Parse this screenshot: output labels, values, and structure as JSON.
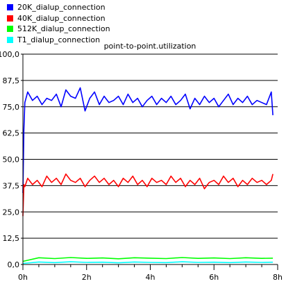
{
  "chart_data": {
    "type": "line",
    "title": "point-to-point.utilization",
    "xlabel": "",
    "ylabel": "",
    "xlim": [
      0,
      8
    ],
    "ylim": [
      0,
      100
    ],
    "grid": true,
    "legend_position": "top-left",
    "y_tick_labels": [
      "0,0",
      "12,5",
      "25,0",
      "37,5",
      "50,0",
      "62,5",
      "75,0",
      "87,5",
      "100,0"
    ],
    "x_tick_labels": [
      "0h",
      "2h",
      "4h",
      "6h",
      "8h"
    ],
    "series": [
      {
        "name": "20K_dialup_connection",
        "color": "#0000ff",
        "x": [
          0,
          0.03,
          0.06,
          0.15,
          0.3,
          0.45,
          0.6,
          0.75,
          0.9,
          1.05,
          1.2,
          1.35,
          1.5,
          1.65,
          1.8,
          1.95,
          2.1,
          2.25,
          2.4,
          2.55,
          2.7,
          2.85,
          3.0,
          3.15,
          3.3,
          3.45,
          3.6,
          3.75,
          3.9,
          4.05,
          4.2,
          4.35,
          4.5,
          4.65,
          4.8,
          4.95,
          5.1,
          5.25,
          5.4,
          5.55,
          5.7,
          5.85,
          6.0,
          6.15,
          6.3,
          6.45,
          6.6,
          6.75,
          6.9,
          7.05,
          7.2,
          7.35,
          7.5,
          7.65,
          7.8,
          7.85
        ],
        "y": [
          34,
          64,
          77,
          82,
          78,
          80,
          76,
          79,
          78,
          81,
          75,
          83,
          80,
          79,
          84,
          73,
          79,
          82,
          76,
          80,
          77,
          78,
          80,
          76,
          81,
          77,
          79,
          75,
          78,
          80,
          76,
          79,
          77,
          80,
          76,
          78,
          81,
          74,
          79,
          76,
          80,
          77,
          79,
          75,
          78,
          81,
          76,
          79,
          77,
          80,
          76,
          78,
          77,
          76,
          82,
          71
        ]
      },
      {
        "name": "40K_dialup_connection",
        "color": "#ff0000",
        "x": [
          0,
          0.03,
          0.06,
          0.15,
          0.3,
          0.45,
          0.6,
          0.75,
          0.9,
          1.05,
          1.2,
          1.35,
          1.5,
          1.65,
          1.8,
          1.95,
          2.1,
          2.25,
          2.4,
          2.55,
          2.7,
          2.85,
          3.0,
          3.15,
          3.3,
          3.45,
          3.6,
          3.75,
          3.9,
          4.05,
          4.2,
          4.35,
          4.5,
          4.65,
          4.8,
          4.95,
          5.1,
          5.25,
          5.4,
          5.55,
          5.7,
          5.85,
          6.0,
          6.15,
          6.3,
          6.45,
          6.6,
          6.75,
          6.9,
          7.05,
          7.2,
          7.35,
          7.5,
          7.65,
          7.8,
          7.85
        ],
        "y": [
          23,
          38,
          37,
          41,
          38,
          40,
          37,
          42,
          39,
          41,
          38,
          43,
          40,
          39,
          41,
          37,
          40,
          42,
          39,
          41,
          38,
          40,
          37,
          41,
          39,
          42,
          38,
          40,
          37,
          41,
          39,
          40,
          38,
          42,
          39,
          41,
          37,
          40,
          38,
          41,
          36,
          39,
          40,
          38,
          42,
          39,
          41,
          37,
          40,
          38,
          41,
          39,
          40,
          38,
          40,
          43
        ]
      },
      {
        "name": "512K_dialup_connection",
        "color": "#00ff00",
        "x": [
          0,
          0.5,
          1.0,
          1.5,
          2.0,
          2.5,
          3.0,
          3.5,
          4.0,
          4.5,
          5.0,
          5.5,
          6.0,
          6.5,
          7.0,
          7.5,
          7.85
        ],
        "y": [
          1.5,
          3.2,
          2.8,
          3.3,
          2.9,
          3.1,
          2.7,
          3.2,
          3.0,
          2.8,
          3.3,
          2.9,
          3.1,
          2.8,
          3.2,
          2.9,
          3.0
        ]
      },
      {
        "name": "T1_dialup_connection",
        "color": "#00ffff",
        "x": [
          0,
          0.5,
          1.0,
          1.5,
          2.0,
          2.5,
          3.0,
          3.5,
          4.0,
          4.5,
          5.0,
          5.5,
          6.0,
          6.5,
          7.0,
          7.5,
          7.85
        ],
        "y": [
          0.5,
          1.2,
          0.9,
          1.3,
          1.0,
          1.1,
          0.8,
          1.2,
          1.0,
          0.9,
          1.3,
          1.0,
          1.1,
          0.9,
          1.2,
          1.0,
          1.1
        ]
      }
    ]
  }
}
